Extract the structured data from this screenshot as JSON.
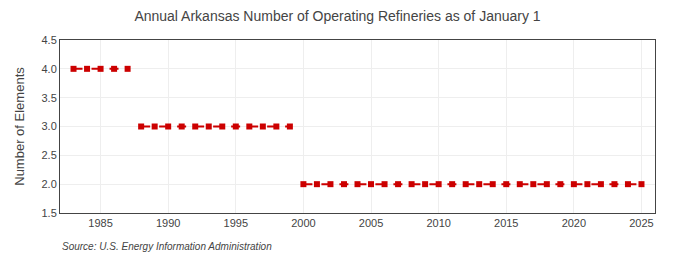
{
  "chart_data": {
    "type": "line",
    "title": "Annual Arkansas Number of Operating Refineries as of January 1",
    "ylabel": "Number of Elements",
    "annotations": [
      "Source: U.S. Energy Information Administration"
    ],
    "x": [
      1983,
      1984,
      1985,
      1986,
      1987,
      1988,
      1989,
      1990,
      1991,
      1992,
      1993,
      1994,
      1995,
      1996,
      1997,
      1998,
      1999,
      2000,
      2001,
      2002,
      2003,
      2004,
      2005,
      2006,
      2007,
      2008,
      2009,
      2010,
      2011,
      2012,
      2013,
      2014,
      2015,
      2016,
      2017,
      2018,
      2019,
      2020,
      2021,
      2022,
      2023,
      2024,
      2025
    ],
    "values": [
      4,
      4,
      4,
      4,
      4,
      3,
      3,
      3,
      3,
      3,
      3,
      3,
      3,
      3,
      3,
      3,
      3,
      2,
      2,
      2,
      2,
      2,
      2,
      2,
      2,
      2,
      2,
      2,
      2,
      2,
      2,
      2,
      2,
      2,
      2,
      2,
      2,
      2,
      2,
      2,
      2,
      2,
      2
    ],
    "color": "#cc0000",
    "marker": "square",
    "line_style": "dash",
    "xlim": [
      1982,
      2026
    ],
    "xticks": [
      1985,
      1990,
      1995,
      2000,
      2005,
      2010,
      2015,
      2020,
      2025
    ],
    "ylim": [
      1.5,
      4.5
    ],
    "yticks": [
      1.5,
      {
        "value": 2.0,
        "label": "2.0"
      },
      2.5,
      {
        "value": 3.0,
        "label": "3.0"
      },
      3.5,
      {
        "value": 4.0,
        "label": "4.0"
      },
      4.5
    ],
    "grid": true
  }
}
